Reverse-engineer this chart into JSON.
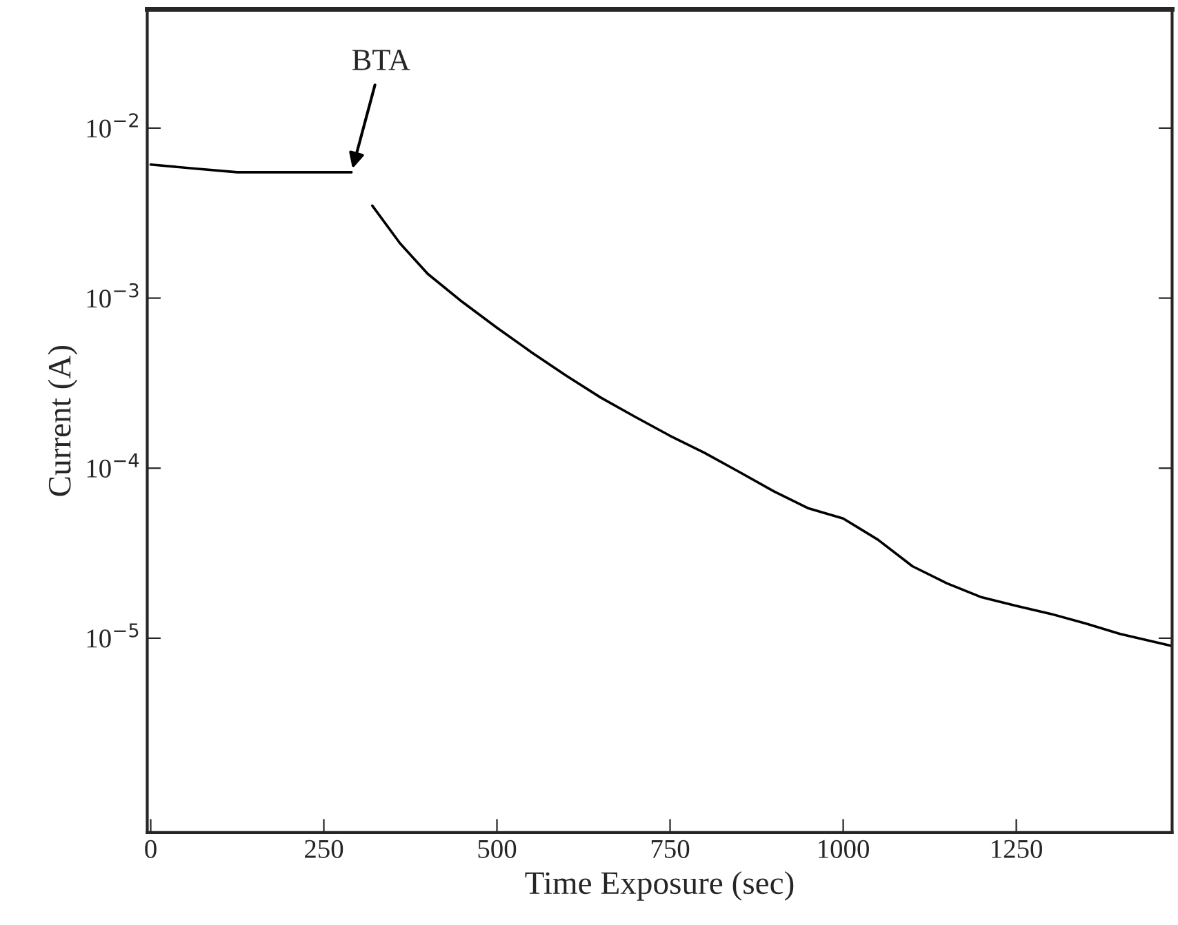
{
  "chart_data": {
    "type": "line",
    "xlabel": "Time Exposure (sec)",
    "ylabel": "Current (A)",
    "x": [
      0,
      60,
      125,
      200,
      290,
      300,
      320,
      360,
      400,
      450,
      500,
      550,
      600,
      650,
      700,
      750,
      800,
      850,
      900,
      950,
      1000,
      1050,
      1100,
      1150,
      1200,
      1250,
      1300,
      1350,
      1400,
      1475
    ],
    "series": [
      {
        "color": "#000000",
        "values": [
          0.0061,
          0.0058,
          0.0055,
          0.0055,
          0.0055,
          null,
          0.0035,
          0.0021,
          0.00139,
          0.00095,
          0.00067,
          0.00048,
          0.00035,
          0.00026,
          0.0002,
          0.000155,
          0.000123,
          9.5e-05,
          7.3e-05,
          5.8e-05,
          5.06e-05,
          3.8e-05,
          2.65e-05,
          2.1e-05,
          1.74e-05,
          1.55e-05,
          1.39e-05,
          1.22e-05,
          1.06e-05,
          9e-06
        ]
      }
    ],
    "annotations": [
      {
        "text": "BTA",
        "x": 290,
        "y": 0.0055
      }
    ],
    "log": "y",
    "xlim": [
      -5,
      1475
    ],
    "ylim": [
      7.2e-07,
      0.05
    ],
    "xticks": [
      0,
      250,
      500,
      750,
      1000,
      1250
    ],
    "yticks": [
      {
        "value": 0.01,
        "label": "10$^{−2}$"
      },
      {
        "value": 0.001,
        "label": "10$^{−3}$"
      },
      {
        "value": 0.0001,
        "label": "10$^{−4}$"
      },
      {
        "value": 1e-05,
        "label": "10$^{−5}$"
      }
    ],
    "grid": false,
    "legend": false,
    "marker": "none",
    "line_style": "solid"
  }
}
